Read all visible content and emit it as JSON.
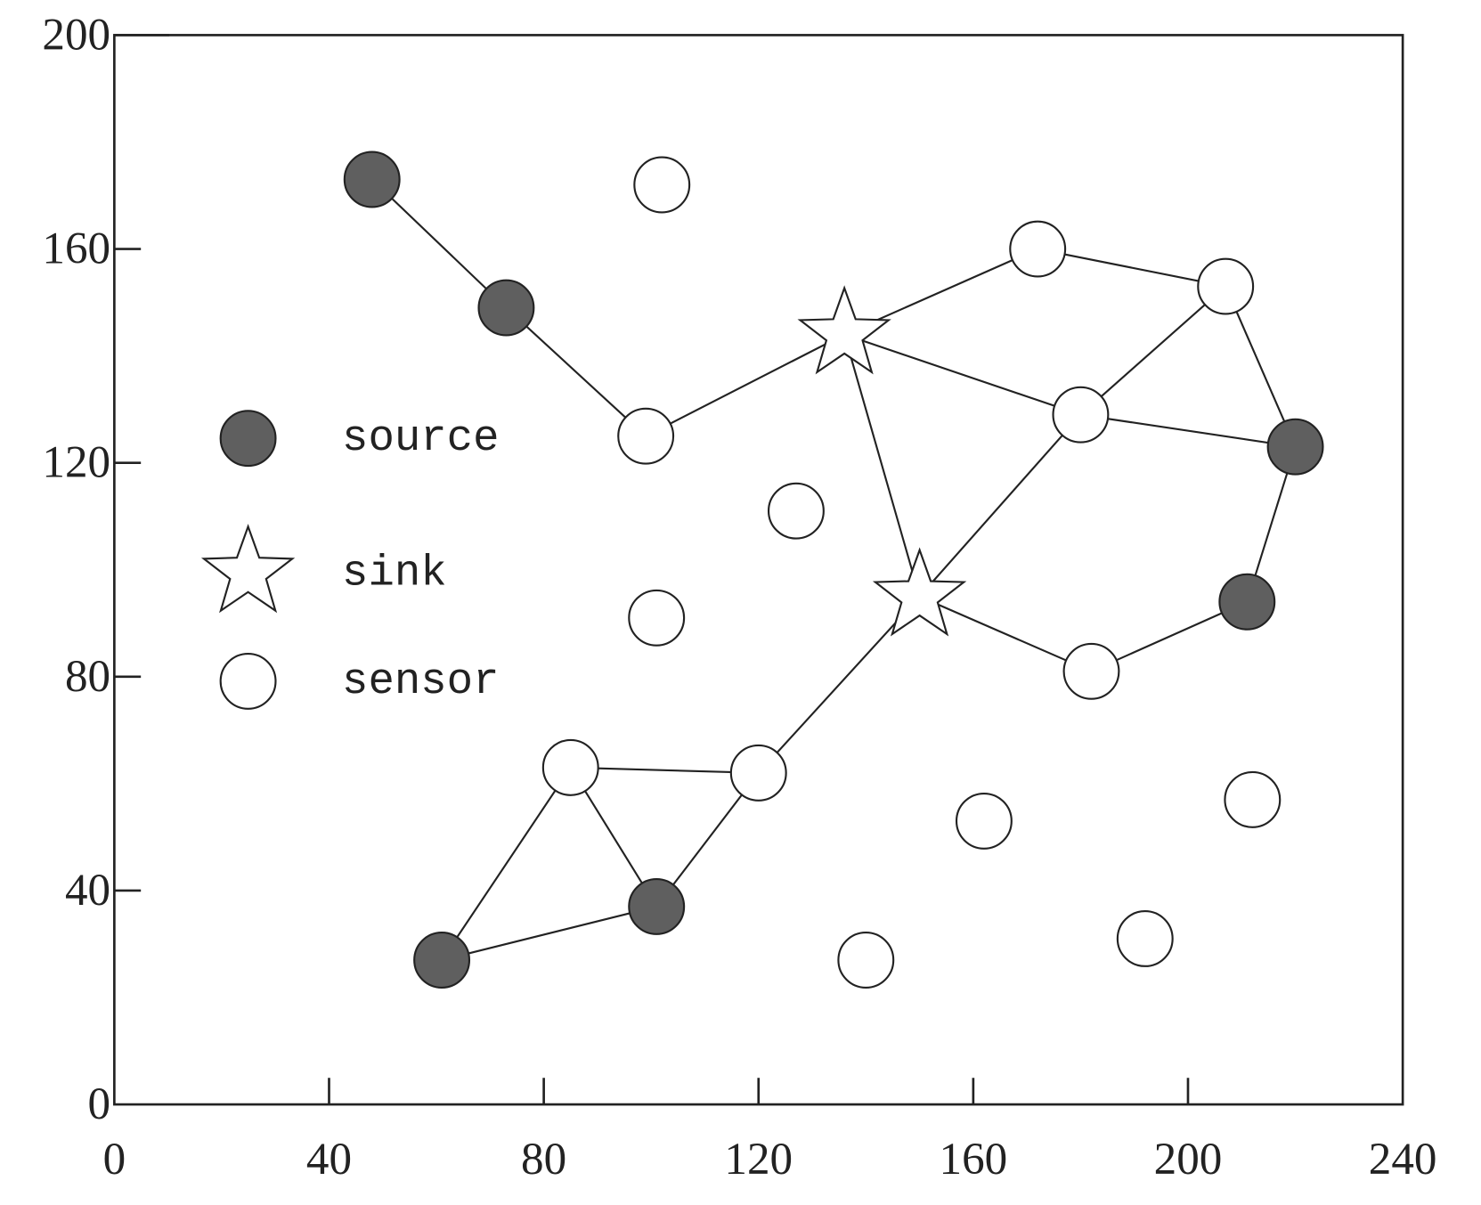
{
  "chart_data": {
    "type": "scatter",
    "xlim": [
      0,
      240
    ],
    "ylim": [
      0,
      200
    ],
    "xticks": [
      0,
      40,
      80,
      120,
      160,
      200,
      240
    ],
    "yticks": [
      0,
      40,
      80,
      120,
      160,
      200
    ],
    "legend": "upper left",
    "series": [
      {
        "name": "source",
        "marker": "circle",
        "color": "#5f5f5f",
        "x": [
          48,
          73,
          220,
          211,
          101,
          61
        ],
        "y": [
          173,
          149,
          123,
          94,
          37,
          27
        ]
      },
      {
        "name": "sink",
        "marker": "star",
        "color": "#ffffff",
        "x": [
          136,
          150
        ],
        "y": [
          144,
          95
        ]
      },
      {
        "name": "sensor",
        "marker": "circle",
        "color": "#ffffff",
        "x": [
          102,
          172,
          207,
          180,
          99,
          127,
          101,
          182,
          85,
          120,
          162,
          212,
          140,
          192
        ],
        "y": [
          172,
          160,
          153,
          129,
          125,
          111,
          91,
          81,
          63,
          62,
          53,
          57,
          27,
          31
        ]
      }
    ],
    "edges": [
      [
        48,
        173,
        73,
        149
      ],
      [
        73,
        149,
        99,
        125
      ],
      [
        99,
        125,
        136,
        144
      ],
      [
        136,
        144,
        172,
        160
      ],
      [
        172,
        160,
        207,
        153
      ],
      [
        207,
        153,
        220,
        123
      ],
      [
        207,
        153,
        180,
        129
      ],
      [
        136,
        144,
        180,
        129
      ],
      [
        180,
        129,
        220,
        123
      ],
      [
        136,
        144,
        150,
        95
      ],
      [
        150,
        95,
        180,
        129
      ],
      [
        220,
        123,
        211,
        94
      ],
      [
        211,
        94,
        182,
        81
      ],
      [
        182,
        81,
        150,
        95
      ],
      [
        150,
        95,
        120,
        62
      ],
      [
        120,
        62,
        85,
        63
      ],
      [
        120,
        62,
        101,
        37
      ],
      [
        85,
        63,
        101,
        37
      ],
      [
        85,
        63,
        61,
        27
      ],
      [
        61,
        27,
        101,
        37
      ]
    ]
  }
}
